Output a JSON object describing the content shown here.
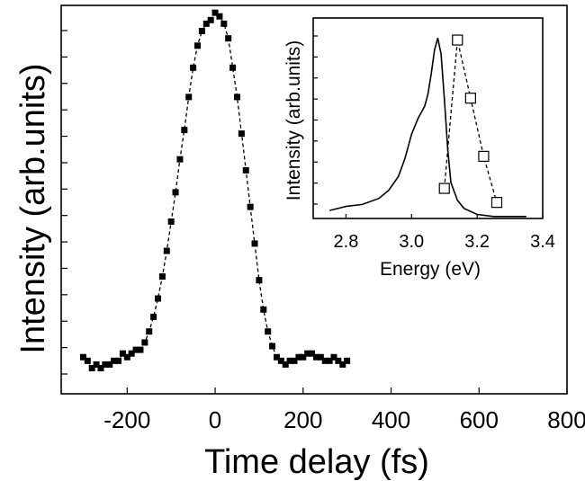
{
  "chart_data": [
    {
      "type": "scatter",
      "xlabel": "Time delay (fs)",
      "ylabel": "Intensity (arb.units)",
      "xlim": [
        -350,
        800
      ],
      "ylim": [
        -0.09,
        0.97
      ],
      "xticks": [
        -200,
        0,
        200,
        400,
        600,
        800
      ],
      "xtick_labels": [
        "-200",
        "0",
        "200",
        "400",
        "600",
        "800"
      ],
      "yticks_count": 14,
      "grid": false,
      "series": [
        {
          "marker": "filled-square",
          "line": "dashed",
          "x": [
            -300,
            -290,
            -280,
            -270,
            -260,
            -250,
            -240,
            -230,
            -220,
            -210,
            -200,
            -190,
            -180,
            -170,
            -160,
            -150,
            -140,
            -130,
            -120,
            -110,
            -100,
            -90,
            -80,
            -70,
            -60,
            -50,
            -40,
            -30,
            -20,
            -10,
            0,
            10,
            20,
            30,
            40,
            50,
            60,
            70,
            80,
            90,
            100,
            110,
            120,
            130,
            140,
            150,
            160,
            170,
            180,
            190,
            200,
            210,
            220,
            230,
            240,
            250,
            260,
            270,
            280,
            290,
            300
          ],
          "y": [
            0.01,
            0.0,
            -0.02,
            -0.01,
            -0.02,
            -0.01,
            -0.01,
            0.0,
            0.0,
            0.02,
            0.01,
            0.02,
            0.03,
            0.03,
            0.05,
            0.08,
            0.12,
            0.17,
            0.23,
            0.3,
            0.38,
            0.46,
            0.55,
            0.63,
            0.72,
            0.8,
            0.86,
            0.9,
            0.92,
            0.93,
            0.95,
            0.94,
            0.92,
            0.88,
            0.8,
            0.72,
            0.62,
            0.52,
            0.42,
            0.32,
            0.22,
            0.14,
            0.08,
            0.04,
            0.01,
            0.0,
            -0.01,
            0.0,
            0.0,
            0.01,
            0.01,
            0.02,
            0.02,
            0.01,
            0.01,
            0.0,
            0.0,
            0.01,
            0.0,
            -0.01,
            0.0
          ]
        }
      ]
    },
    {
      "type": "line",
      "xlabel": "Energy (eV)",
      "ylabel": "Intensity (arb.units)",
      "xlim": [
        2.7,
        3.4
      ],
      "ylim": [
        0.0,
        1.0
      ],
      "xticks": [
        2.8,
        3.0,
        3.2,
        3.4
      ],
      "xtick_labels": [
        "2.8",
        "3.0",
        "3.2",
        "3.4"
      ],
      "yticks_count": 9,
      "grid": false,
      "series": [
        {
          "line": "solid",
          "x": [
            2.75,
            2.8,
            2.85,
            2.9,
            2.93,
            2.96,
            2.98,
            3.0,
            3.02,
            3.04,
            3.05,
            3.06,
            3.07,
            3.08,
            3.09,
            3.1,
            3.11,
            3.12,
            3.14,
            3.16,
            3.2,
            3.25,
            3.3,
            3.35
          ],
          "y": [
            0.04,
            0.06,
            0.07,
            0.1,
            0.14,
            0.21,
            0.3,
            0.42,
            0.5,
            0.56,
            0.62,
            0.72,
            0.84,
            0.9,
            0.82,
            0.6,
            0.35,
            0.18,
            0.09,
            0.05,
            0.02,
            0.01,
            0.01,
            0.01
          ]
        },
        {
          "marker": "open-square",
          "line": "dashed",
          "x": [
            3.1,
            3.14,
            3.18,
            3.22,
            3.26
          ],
          "y": [
            0.15,
            0.89,
            0.6,
            0.31,
            0.08
          ]
        }
      ]
    }
  ]
}
